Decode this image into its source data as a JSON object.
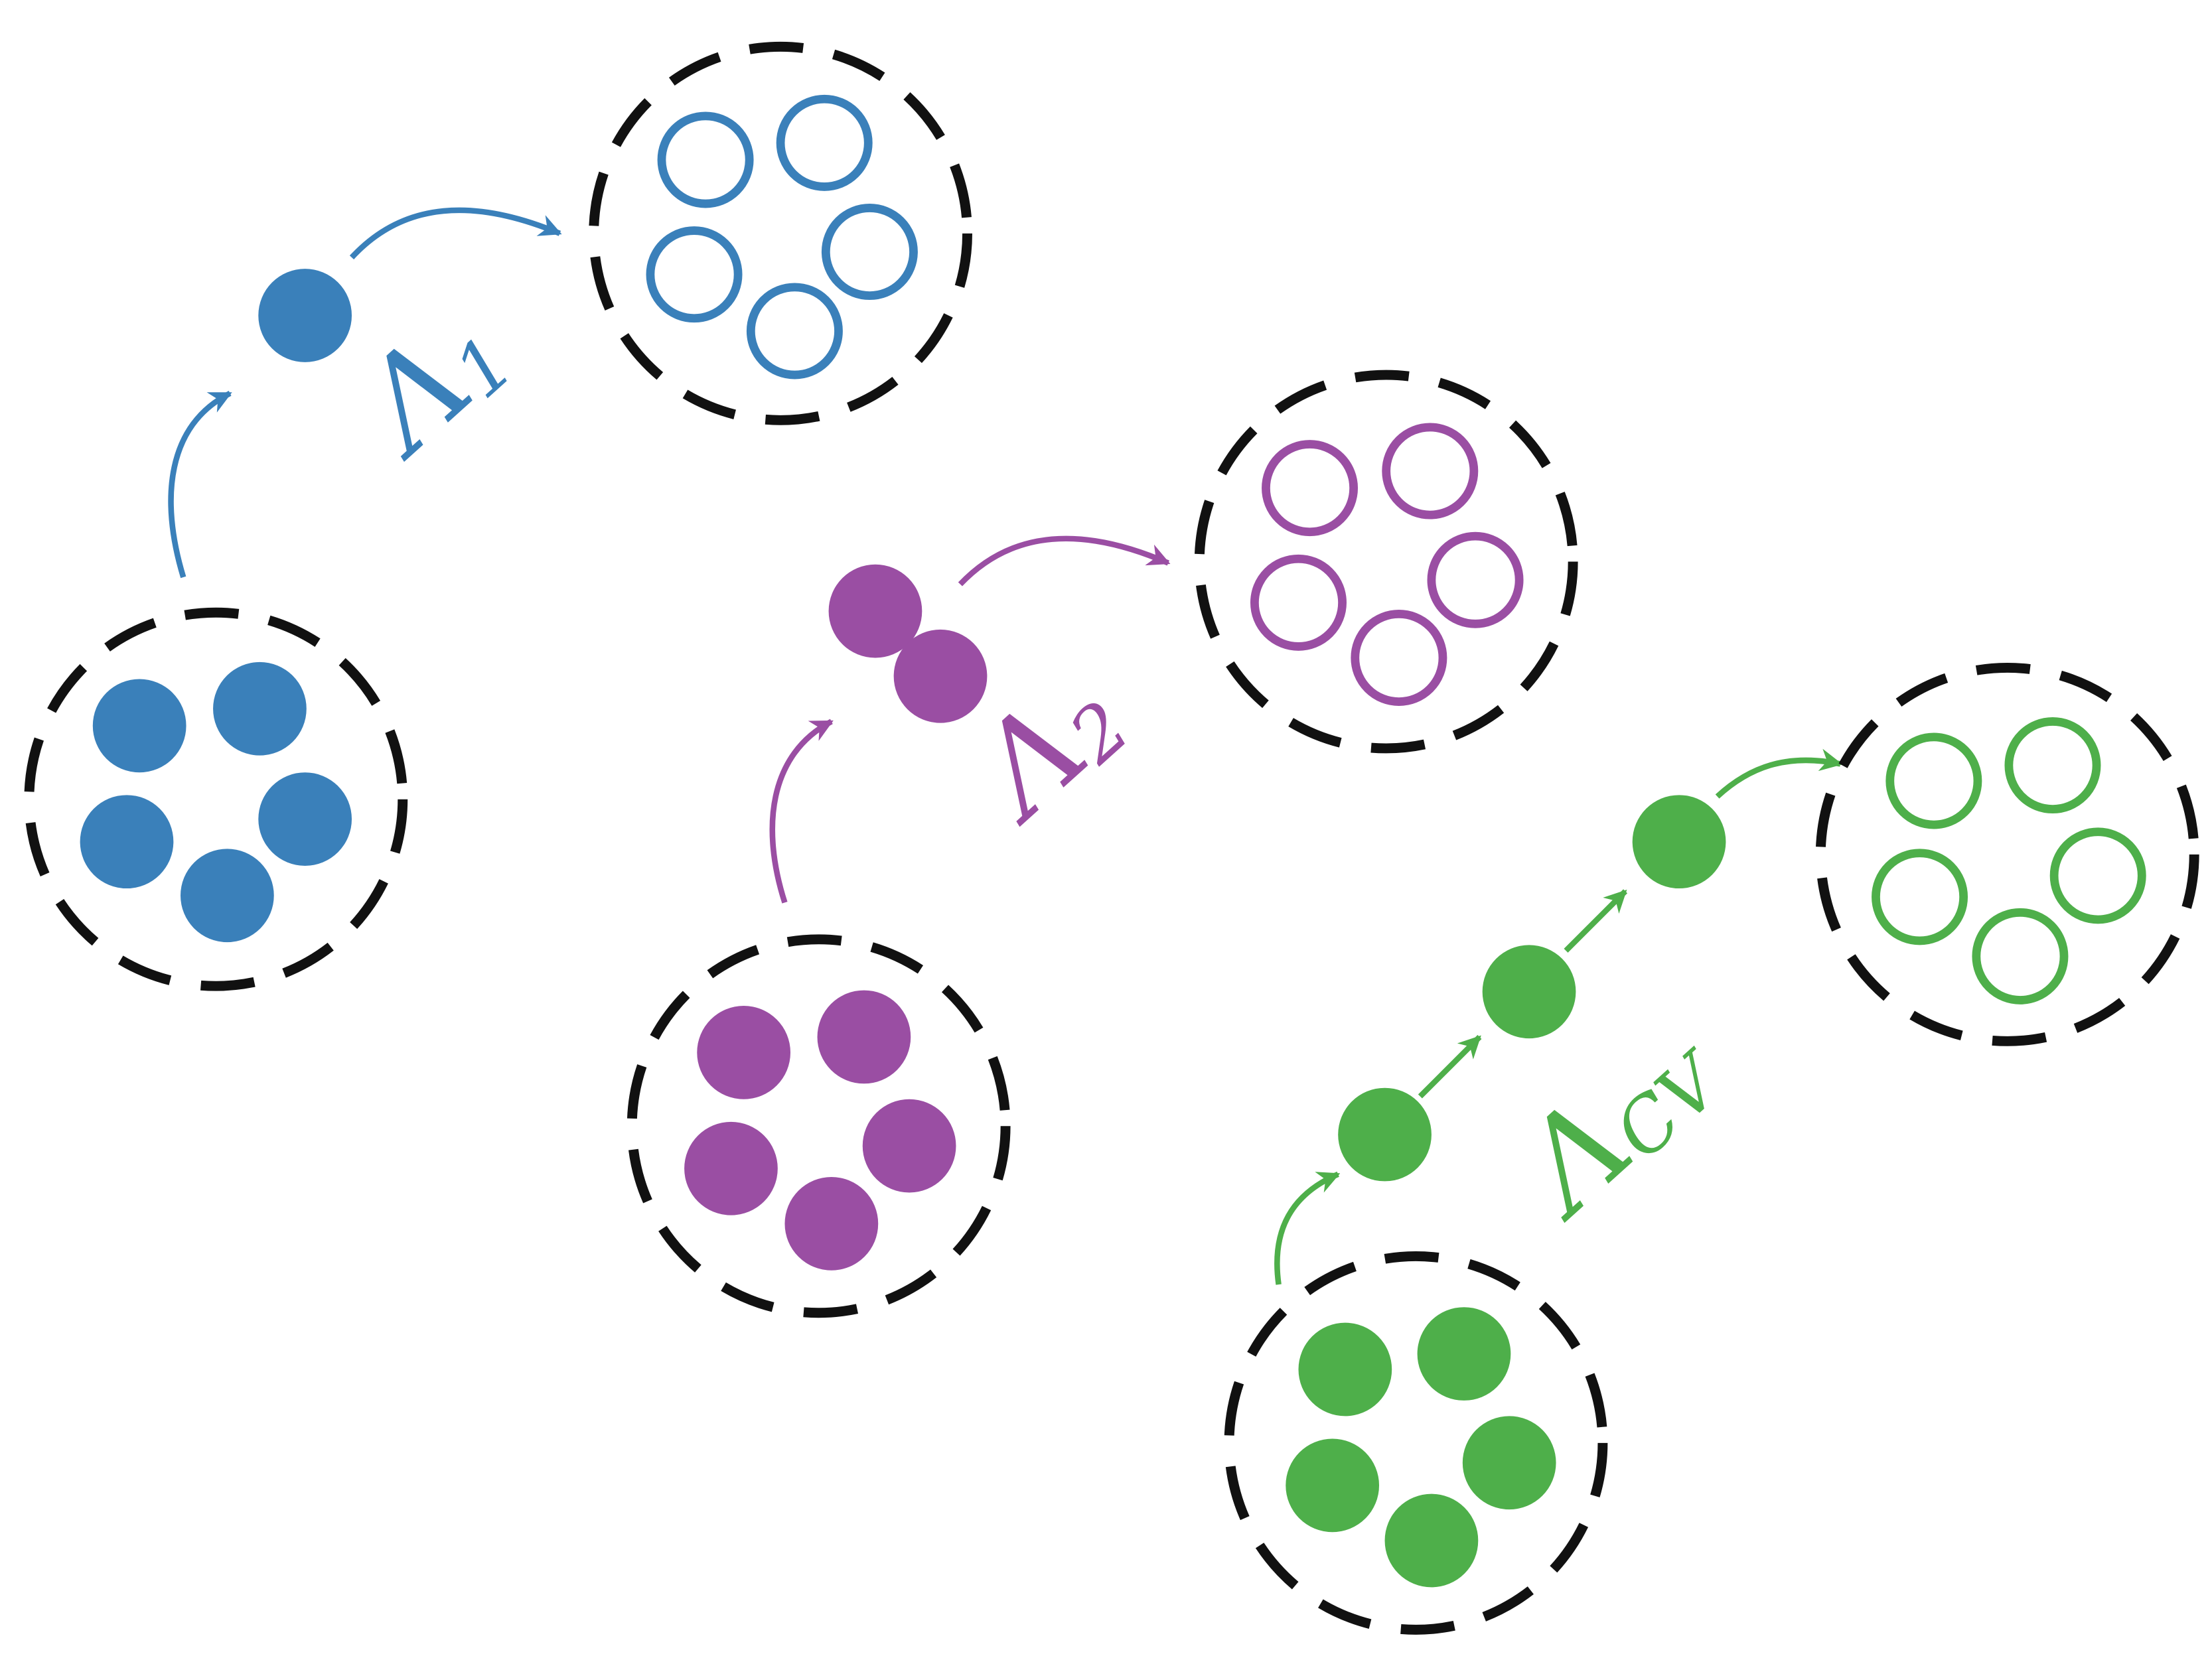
{
  "colors": {
    "blue": "#3A80BA",
    "purple": "#9A4EA3",
    "green": "#4EAF4A",
    "dashed_border": "#111111"
  },
  "labels": {
    "blue": {
      "symbol": "Λ",
      "subscript": "1"
    },
    "purple": {
      "symbol": "Λ",
      "subscript": "2"
    },
    "green": {
      "symbol": "Λ",
      "subscript": "CV"
    }
  }
}
